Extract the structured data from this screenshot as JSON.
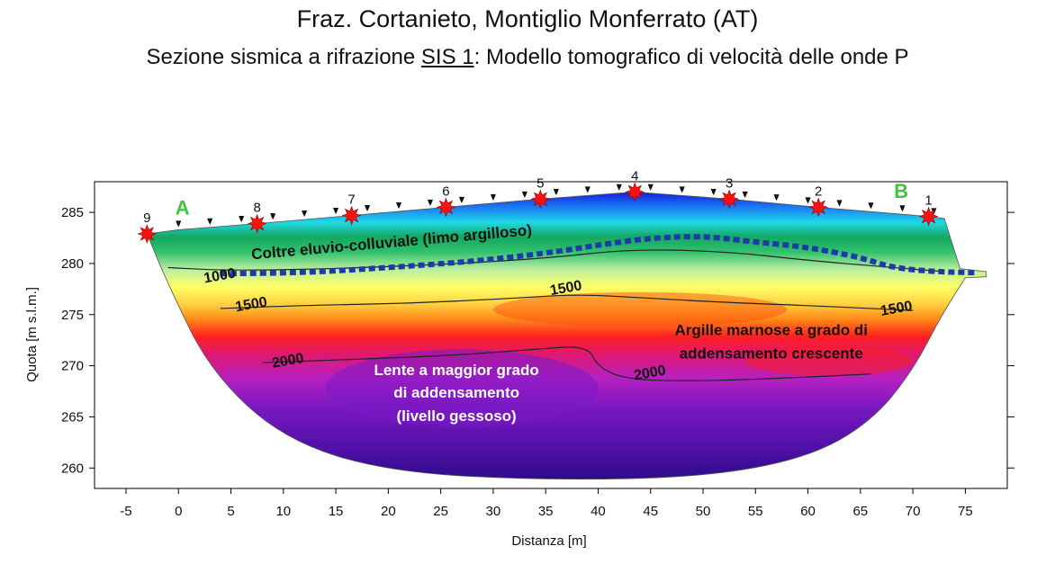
{
  "header": {
    "title": "Fraz. Cortanieto, Montiglio Monferrato (AT)",
    "subtitle_pre": "Sezione sismica a rifrazione ",
    "subtitle_link": "SIS 1",
    "subtitle_post": ": Modello tomografico di velocità delle onde P"
  },
  "chart_data": {
    "type": "heatmap",
    "xlabel": "Distanza [m]",
    "ylabel": "Quota [m s.l.m.]",
    "xlim": [
      -8,
      79
    ],
    "ylim": [
      258,
      288
    ],
    "xticks": [
      -5,
      0,
      5,
      10,
      15,
      20,
      25,
      30,
      35,
      40,
      45,
      50,
      55,
      60,
      65,
      70,
      75
    ],
    "yticks": [
      260,
      265,
      270,
      275,
      280,
      285
    ],
    "colors": {
      "v_low": "#1a1adf",
      "v_mid": "#ffff66",
      "v_high": "#5a12a8",
      "refractor": "#1e3aa8",
      "shot": "#ff1010",
      "endpoint_label": "#44c244"
    },
    "contours": [
      {
        "label": "1000",
        "x": [
          -1,
          5,
          15,
          25,
          35,
          43,
          52,
          60,
          67,
          73
        ],
        "y": [
          279.6,
          279.3,
          279.5,
          279.9,
          280.5,
          281.4,
          281.2,
          280.3,
          279.7,
          279.2
        ]
      },
      {
        "label": "1500",
        "x": [
          4,
          12,
          22,
          32,
          38,
          45,
          52,
          62,
          70
        ],
        "y": [
          275.6,
          275.9,
          276.1,
          276.6,
          277.0,
          276.6,
          276.2,
          275.8,
          275.4
        ]
      },
      {
        "label": "2000",
        "x": [
          8,
          16,
          26,
          34,
          39,
          40,
          43,
          50,
          58,
          66
        ],
        "y": [
          270.3,
          270.6,
          271.0,
          271.6,
          272.0,
          269.8,
          268.6,
          268.5,
          268.8,
          269.2
        ]
      }
    ],
    "contour_labels": [
      {
        "text": "1000",
        "x": 2.5,
        "y": 278.1
      },
      {
        "text": "1500",
        "x": 5.5,
        "y": 275.3
      },
      {
        "text": "1500",
        "x": 35.5,
        "y": 276.9
      },
      {
        "text": "1500",
        "x": 67,
        "y": 274.9
      },
      {
        "text": "2000",
        "x": 9,
        "y": 269.8
      },
      {
        "text": "2000",
        "x": 43.5,
        "y": 268.6
      }
    ],
    "shots": [
      {
        "label": "1",
        "x": 71.5,
        "y": 284.6
      },
      {
        "label": "2",
        "x": 61,
        "y": 285.5
      },
      {
        "label": "3",
        "x": 52.5,
        "y": 286.3
      },
      {
        "label": "4",
        "x": 43.5,
        "y": 287.0
      },
      {
        "label": "5",
        "x": 34.5,
        "y": 286.3
      },
      {
        "label": "6",
        "x": 25.5,
        "y": 285.5
      },
      {
        "label": "7",
        "x": 16.5,
        "y": 284.7
      },
      {
        "label": "8",
        "x": 7.5,
        "y": 283.9
      },
      {
        "label": "9",
        "x": -3,
        "y": 282.9
      }
    ],
    "geophones_x": [
      0,
      3,
      6,
      9,
      12,
      15,
      18,
      21,
      24,
      27,
      30,
      33,
      36,
      39,
      42,
      45,
      48,
      51,
      54,
      57,
      60,
      63,
      66,
      69,
      72
    ],
    "refractor": {
      "x": [
        4,
        12,
        20,
        28,
        35,
        40,
        45,
        50,
        55,
        60,
        65,
        68,
        72,
        76
      ],
      "y": [
        279.0,
        279.1,
        279.6,
        280.2,
        281.0,
        281.8,
        282.5,
        282.7,
        282.1,
        281.6,
        280.6,
        279.6,
        279.2,
        279.1
      ]
    },
    "annotations": {
      "endpoint_a": "A",
      "endpoint_b": "B",
      "layer_top": "Coltre eluvio-colluviale (limo argilloso)",
      "lens_line1": "Lente a maggior grado",
      "lens_line2": "di addensamento",
      "lens_line3": "(livello gessoso)",
      "clay_line1": "Argille marnose a grado di",
      "clay_line2": "addensamento crescente"
    }
  }
}
